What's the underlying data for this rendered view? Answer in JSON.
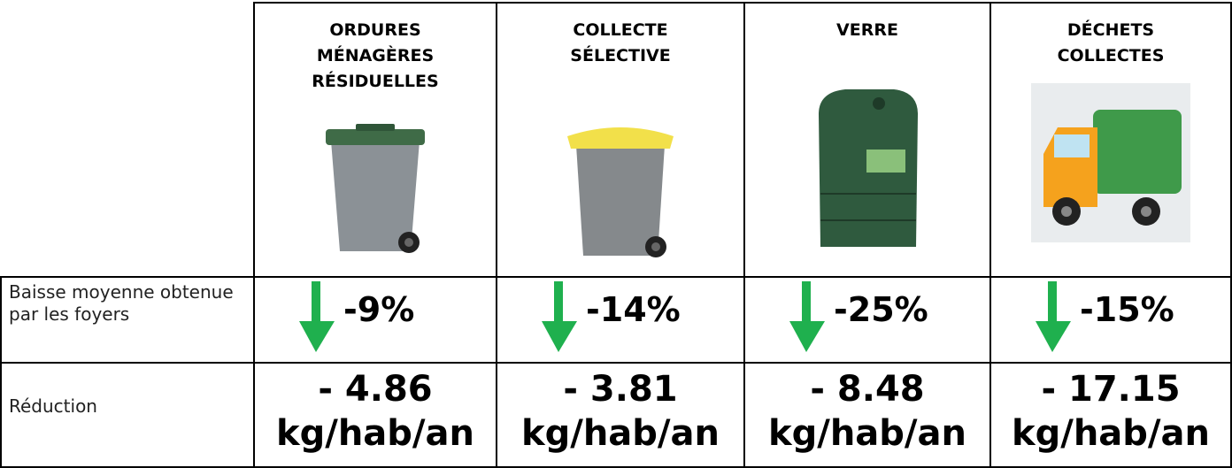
{
  "table": {
    "headers": [
      "ORDURES MÉNAGÈRES RÉSIDUELLES",
      "COLLECTE SÉLECTIVE",
      "VERRE",
      "DÉCHETS COLLECTES"
    ],
    "rows": [
      [
        "Baisse moyenne obtenue par les foyers",
        "-9%",
        "-14%",
        "-25%",
        "-15%"
      ],
      [
        "Réduction",
        "- 4.86 kg/hab/an",
        "- 3.81 kg/hab/an",
        "- 8.48 kg/hab/an",
        "- 17.15 kg/hab/an"
      ]
    ]
  }
}
